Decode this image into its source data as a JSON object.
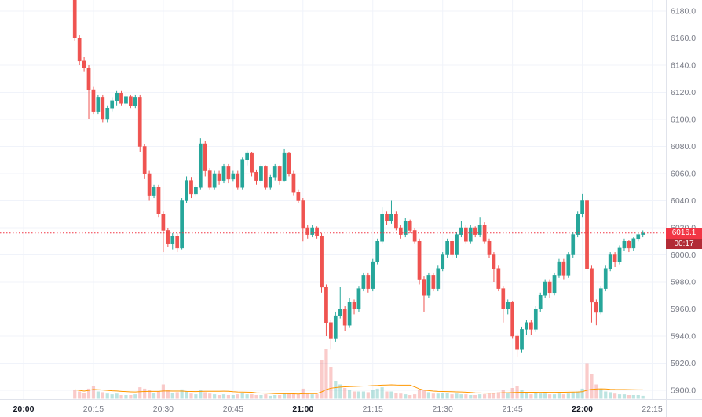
{
  "chart": {
    "price_label": "6016.1",
    "countdown": "00:17"
  },
  "chart_data": {
    "type": "candlestick",
    "interval": "1m",
    "start_time": "20:11",
    "current_price": 6016.1,
    "bar_countdown": "00:17",
    "grid": true,
    "y_axis": {
      "tick_start": 5900,
      "tick_end": 6180,
      "tick_step": 20,
      "format_decimals": 1,
      "visible_min": 5893.6,
      "visible_max": 6188.1
    },
    "x_axis": {
      "tick_labels": [
        "20:00",
        "20:15",
        "20:30",
        "20:45",
        "21:00",
        "21:15",
        "21:30",
        "21:45",
        "22:00",
        "22:15"
      ],
      "bold_labels": [
        "20:00",
        "21:00",
        "22:00"
      ]
    },
    "colors": {
      "up": "#26a69a",
      "down": "#ef5350",
      "up_volume": "rgba(38,166,154,0.30)",
      "down_volume": "rgba(239,83,80,0.30)",
      "volume_ma": "#ff9800",
      "grid": "#f0f3fa",
      "axis_border": "#e0e3eb",
      "tick_text": "#787b86",
      "bold_tick_text": "#131722",
      "price_line": "#f23645",
      "price_label_bg": "#f23645",
      "countdown_bg": "#b22b36"
    },
    "volume_ma_period": 20,
    "candles_columns": [
      "open",
      "high",
      "low",
      "close",
      "volume"
    ],
    "candles": [
      [
        6196,
        6196,
        6158,
        6160,
        12
      ],
      [
        6160,
        6162,
        6140,
        6143,
        10
      ],
      [
        6143,
        6146,
        6135,
        6138,
        8
      ],
      [
        6138,
        6140,
        6100,
        6122,
        14
      ],
      [
        6122,
        6124,
        6104,
        6106,
        18
      ],
      [
        6106,
        6118,
        6104,
        6116,
        10
      ],
      [
        6116,
        6118,
        6098,
        6100,
        9
      ],
      [
        6100,
        6110,
        6098,
        6108,
        7
      ],
      [
        6108,
        6116,
        6106,
        6114,
        6
      ],
      [
        6114,
        6121,
        6110,
        6119,
        7
      ],
      [
        6119,
        6121,
        6110,
        6112,
        5
      ],
      [
        6112,
        6119,
        6110,
        6117,
        5
      ],
      [
        6117,
        6118,
        6108,
        6110,
        5
      ],
      [
        6110,
        6118,
        6108,
        6116,
        6
      ],
      [
        6116,
        6118,
        6076,
        6080,
        16
      ],
      [
        6080,
        6082,
        6056,
        6060,
        14
      ],
      [
        6060,
        6062,
        6040,
        6044,
        12
      ],
      [
        6044,
        6052,
        6042,
        6050,
        8
      ],
      [
        6050,
        6052,
        6028,
        6030,
        10
      ],
      [
        6030,
        6032,
        6002,
        6018,
        20
      ],
      [
        6018,
        6020,
        6006,
        6008,
        12
      ],
      [
        6008,
        6016,
        6004,
        6014,
        8
      ],
      [
        6014,
        6016,
        6002,
        6005,
        9
      ],
      [
        6005,
        6042,
        6004,
        6040,
        13
      ],
      [
        6040,
        6058,
        6038,
        6055,
        10
      ],
      [
        6055,
        6057,
        6042,
        6045,
        7
      ],
      [
        6045,
        6052,
        6043,
        6050,
        6
      ],
      [
        6050,
        6086,
        6048,
        6082,
        12
      ],
      [
        6082,
        6084,
        6058,
        6062,
        9
      ],
      [
        6062,
        6064,
        6048,
        6050,
        7
      ],
      [
        6050,
        6062,
        6048,
        6060,
        6
      ],
      [
        6060,
        6062,
        6052,
        6055,
        5
      ],
      [
        6055,
        6067,
        6053,
        6065,
        6
      ],
      [
        6065,
        6067,
        6053,
        6056,
        5
      ],
      [
        6056,
        6062,
        6054,
        6060,
        5
      ],
      [
        6060,
        6062,
        6048,
        6050,
        6
      ],
      [
        6050,
        6072,
        6048,
        6070,
        8
      ],
      [
        6070,
        6077,
        6066,
        6075,
        6
      ],
      [
        6075,
        6076,
        6058,
        6061,
        6
      ],
      [
        6061,
        6063,
        6052,
        6055,
        5
      ],
      [
        6055,
        6067,
        6053,
        6065,
        5
      ],
      [
        6065,
        6066,
        6048,
        6050,
        6
      ],
      [
        6050,
        6059,
        6048,
        6057,
        4
      ],
      [
        6057,
        6067,
        6055,
        6065,
        5
      ],
      [
        6065,
        6066,
        6052,
        6055,
        5
      ],
      [
        6055,
        6078,
        6054,
        6075,
        8
      ],
      [
        6075,
        6076,
        6058,
        6060,
        7
      ],
      [
        6060,
        6062,
        6044,
        6046,
        7
      ],
      [
        6046,
        6048,
        6038,
        6040,
        6
      ],
      [
        6040,
        6042,
        6010,
        6020,
        14
      ],
      [
        6020,
        6022,
        6012,
        6015,
        8
      ],
      [
        6015,
        6022,
        6013,
        6020,
        6
      ],
      [
        6020,
        6021,
        6012,
        6014,
        6
      ],
      [
        6014,
        6016,
        5972,
        5976,
        55
      ],
      [
        5976,
        5978,
        5940,
        5950,
        70
      ],
      [
        5950,
        5952,
        5930,
        5938,
        45
      ],
      [
        5938,
        5958,
        5936,
        5955,
        25
      ],
      [
        5955,
        5976,
        5953,
        5960,
        20
      ],
      [
        5960,
        5962,
        5944,
        5948,
        15
      ],
      [
        5948,
        5968,
        5946,
        5965,
        12
      ],
      [
        5965,
        5967,
        5956,
        5960,
        10
      ],
      [
        5960,
        5977,
        5958,
        5975,
        10
      ],
      [
        5975,
        5987,
        5973,
        5985,
        10
      ],
      [
        5985,
        5987,
        5972,
        5975,
        9
      ],
      [
        5975,
        5997,
        5973,
        5995,
        12
      ],
      [
        5995,
        6012,
        5993,
        6010,
        14
      ],
      [
        6010,
        6035,
        6008,
        6030,
        16
      ],
      [
        6030,
        6032,
        6022,
        6025,
        10
      ],
      [
        6025,
        6040,
        6023,
        6030,
        10
      ],
      [
        6030,
        6032,
        6018,
        6020,
        8
      ],
      [
        6020,
        6022,
        6012,
        6015,
        7
      ],
      [
        6015,
        6027,
        6013,
        6025,
        6
      ],
      [
        6025,
        6026,
        6016,
        6018,
        5
      ],
      [
        6018,
        6020,
        6008,
        6010,
        6
      ],
      [
        6010,
        6012,
        5978,
        5982,
        12
      ],
      [
        5982,
        5984,
        5958,
        5970,
        12
      ],
      [
        5970,
        5987,
        5968,
        5985,
        9
      ],
      [
        5985,
        5987,
        5973,
        5975,
        7
      ],
      [
        5975,
        5992,
        5973,
        5990,
        7
      ],
      [
        5990,
        6002,
        5988,
        6000,
        8
      ],
      [
        6000,
        6012,
        5998,
        6010,
        8
      ],
      [
        6010,
        6012,
        5998,
        6000,
        6
      ],
      [
        6000,
        6017,
        5998,
        6015,
        7
      ],
      [
        6015,
        6025,
        6013,
        6020,
        6
      ],
      [
        6020,
        6022,
        6008,
        6010,
        6
      ],
      [
        6010,
        6022,
        6008,
        6020,
        5
      ],
      [
        6020,
        6021,
        6013,
        6015,
        5
      ],
      [
        6015,
        6028,
        6013,
        6022,
        6
      ],
      [
        6022,
        6024,
        6008,
        6010,
        6
      ],
      [
        6010,
        6012,
        5998,
        6000,
        7
      ],
      [
        6000,
        6002,
        5980,
        5990,
        8
      ],
      [
        5990,
        5992,
        5973,
        5975,
        9
      ],
      [
        5975,
        5977,
        5950,
        5960,
        12
      ],
      [
        5960,
        5967,
        5956,
        5965,
        8
      ],
      [
        5965,
        5966,
        5938,
        5940,
        15
      ],
      [
        5940,
        5942,
        5925,
        5930,
        18
      ],
      [
        5930,
        5947,
        5928,
        5945,
        12
      ],
      [
        5945,
        5952,
        5941,
        5950,
        8
      ],
      [
        5950,
        5952,
        5941,
        5945,
        6
      ],
      [
        5945,
        5962,
        5943,
        5960,
        8
      ],
      [
        5960,
        5972,
        5958,
        5970,
        7
      ],
      [
        5970,
        5982,
        5968,
        5980,
        7
      ],
      [
        5980,
        5982,
        5968,
        5972,
        6
      ],
      [
        5972,
        5987,
        5970,
        5985,
        6
      ],
      [
        5985,
        5997,
        5983,
        5995,
        7
      ],
      [
        5995,
        5997,
        5982,
        5985,
        6
      ],
      [
        5985,
        6002,
        5983,
        6000,
        7
      ],
      [
        6000,
        6017,
        5998,
        6015,
        9
      ],
      [
        6015,
        6032,
        6013,
        6030,
        10
      ],
      [
        6030,
        6045,
        6028,
        6040,
        14
      ],
      [
        6040,
        6042,
        5988,
        5990,
        50
      ],
      [
        5990,
        5992,
        5950,
        5965,
        35
      ],
      [
        5965,
        5967,
        5948,
        5958,
        20
      ],
      [
        5958,
        5977,
        5956,
        5975,
        14
      ],
      [
        5975,
        5992,
        5973,
        5990,
        10
      ],
      [
        5990,
        6002,
        5988,
        6000,
        9
      ],
      [
        6000,
        6002,
        5991,
        5995,
        7
      ],
      [
        5995,
        6007,
        5993,
        6005,
        6
      ],
      [
        6005,
        6012,
        6003,
        6010,
        6
      ],
      [
        6010,
        6011,
        6002,
        6005,
        5
      ],
      [
        6005,
        6013,
        6003,
        6012,
        5
      ],
      [
        6012,
        6017,
        6010,
        6015,
        5
      ],
      [
        6015,
        6018,
        6013,
        6016.1,
        4
      ]
    ]
  }
}
